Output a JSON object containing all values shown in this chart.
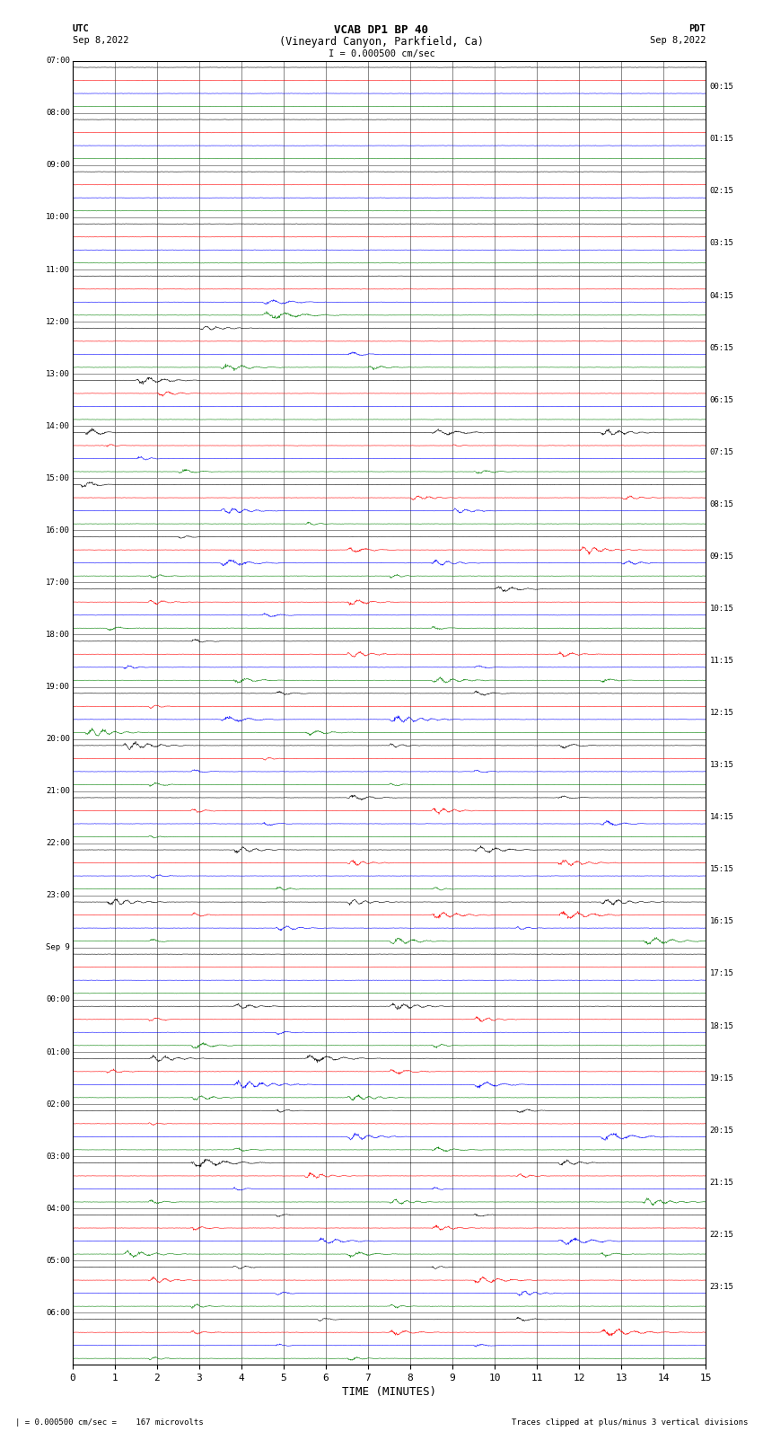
{
  "title_line1": "VCAB DP1 BP 40",
  "title_line2": "(Vineyard Canyon, Parkfield, Ca)",
  "scale_label": "I = 0.000500 cm/sec",
  "utc_label": "UTC",
  "utc_date": "Sep 8,2022",
  "pdt_label": "PDT",
  "pdt_date": "Sep 8,2022",
  "left_times": [
    "07:00",
    "08:00",
    "09:00",
    "10:00",
    "11:00",
    "12:00",
    "13:00",
    "14:00",
    "15:00",
    "16:00",
    "17:00",
    "18:00",
    "19:00",
    "20:00",
    "21:00",
    "22:00",
    "23:00",
    "Sep 9",
    "00:00",
    "01:00",
    "02:00",
    "03:00",
    "04:00",
    "05:00",
    "06:00"
  ],
  "right_times": [
    "00:15",
    "01:15",
    "02:15",
    "03:15",
    "04:15",
    "05:15",
    "06:15",
    "07:15",
    "08:15",
    "09:15",
    "10:15",
    "11:15",
    "12:15",
    "13:15",
    "14:15",
    "15:15",
    "16:15",
    "17:15",
    "18:15",
    "19:15",
    "20:15",
    "21:15",
    "22:15",
    "23:15"
  ],
  "xlabel": "TIME (MINUTES)",
  "xlim": [
    0,
    15
  ],
  "xticks": [
    0,
    1,
    2,
    3,
    4,
    5,
    6,
    7,
    8,
    9,
    10,
    11,
    12,
    13,
    14,
    15
  ],
  "n_rows": 25,
  "traces_per_row": 4,
  "colors": [
    "black",
    "red",
    "blue",
    "green"
  ],
  "bg_color": "white",
  "grid_color": "#888888",
  "footer_left": "| = 0.000500 cm/sec =    167 microvolts",
  "footer_right": "Traces clipped at plus/minus 3 vertical divisions",
  "noise_scale": 0.006,
  "fig_width": 8.5,
  "fig_height": 16.13
}
